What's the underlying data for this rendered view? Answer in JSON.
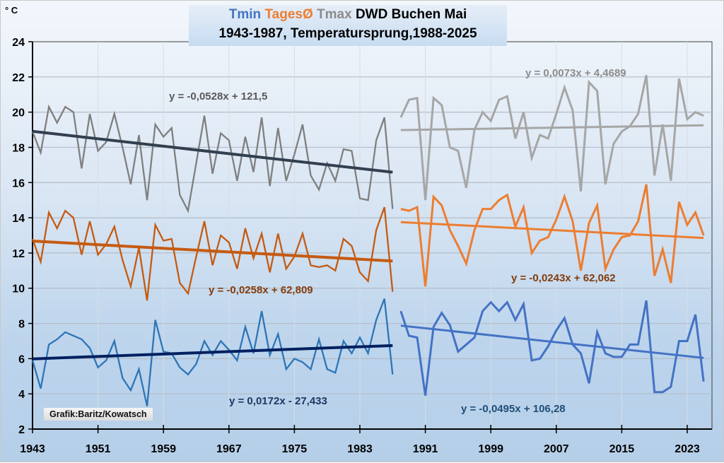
{
  "chart_data": {
    "type": "line",
    "title": "Tmin TagesØ Tmax DWD Buchen Mai",
    "title_parts": [
      {
        "text": "Tmin",
        "color": "#4472c4"
      },
      {
        "text": "TagesØ",
        "color": "#ed7d31"
      },
      {
        "text": "Tmax",
        "color": "#8c8c8c"
      },
      {
        "text": "DWD Buchen Mai",
        "color": "#000000"
      }
    ],
    "subtitle": "1943-1987, Temperatursprung,1988-2025",
    "ylabel": "° C",
    "xlabel": "",
    "ylim": [
      2,
      24
    ],
    "xlim": [
      1943,
      2026
    ],
    "yticks": [
      "2",
      "4",
      "6",
      "8",
      "10",
      "12",
      "14",
      "16",
      "18",
      "20",
      "22",
      "24"
    ],
    "xticks": [
      "1943",
      "1951",
      "1959",
      "1967",
      "1975",
      "1983",
      "1991",
      "1999",
      "2007",
      "2015",
      "2023"
    ],
    "grid": true,
    "legend": "none",
    "credit": "Grafik:Baritz/Kowatsch",
    "periods": [
      {
        "name": "1943-1987",
        "start": 1943,
        "series": [
          {
            "name": "Tmax",
            "color": "#7f7f7f",
            "values": [
              18.9,
              17.7,
              20.3,
              19.4,
              20.3,
              20.0,
              16.8,
              19.9,
              17.8,
              18.3,
              19.9,
              18.0,
              15.9,
              18.7,
              15.0,
              19.3,
              18.6,
              19.1,
              15.3,
              14.4,
              17.1,
              19.8,
              16.5,
              18.8,
              18.4,
              16.1,
              18.6,
              16.6,
              19.7,
              15.8,
              19.1,
              16.1,
              17.6,
              19.3,
              16.4,
              15.6,
              17.1,
              16.1,
              17.9,
              17.8,
              15.1,
              15.0,
              18.4,
              19.7,
              14.5
            ]
          },
          {
            "name": "TagesØ",
            "color": "#c55a11",
            "values": [
              12.8,
              11.5,
              14.3,
              13.4,
              14.4,
              14.0,
              11.9,
              13.8,
              11.9,
              12.5,
              13.5,
              11.6,
              10.1,
              12.3,
              9.3,
              13.6,
              12.7,
              12.8,
              10.3,
              9.7,
              11.8,
              13.8,
              11.3,
              13.0,
              12.6,
              11.1,
              13.4,
              11.7,
              13.1,
              10.9,
              13.1,
              11.1,
              11.8,
              13.1,
              11.3,
              11.2,
              11.3,
              11.0,
              12.8,
              12.4,
              10.9,
              10.4,
              13.3,
              14.6,
              9.8
            ]
          },
          {
            "name": "Tmin",
            "color": "#2e75b6",
            "values": [
              5.9,
              4.3,
              6.8,
              7.1,
              7.5,
              7.3,
              7.1,
              6.6,
              5.5,
              5.9,
              7.0,
              4.9,
              4.2,
              5.4,
              3.3,
              8.2,
              6.4,
              6.3,
              5.5,
              5.1,
              5.7,
              7.0,
              6.2,
              7.0,
              6.5,
              5.9,
              7.8,
              6.3,
              8.7,
              6.2,
              7.4,
              5.4,
              6.0,
              5.8,
              5.4,
              7.1,
              5.4,
              5.2,
              7.0,
              6.3,
              7.2,
              6.3,
              8.2,
              9.4,
              5.1
            ]
          }
        ],
        "trendlines": [
          {
            "series": "Tmax",
            "equation": "y = -0,0528x + 121,5",
            "slope": -0.0528,
            "intercept": 121.5,
            "color": "#323f4f"
          },
          {
            "series": "TagesØ",
            "equation": "y = -0,0258x + 62,809",
            "slope": -0.0258,
            "intercept": 62.809,
            "color": "#c55a11"
          },
          {
            "series": "Tmin",
            "equation": "y = 0,0172x - 27,433",
            "slope": 0.0172,
            "intercept": -27.433,
            "color": "#002060"
          }
        ]
      },
      {
        "name": "1988-2025",
        "start": 1988,
        "series": [
          {
            "name": "Tmax",
            "color": "#a6a6a6",
            "values": [
              19.7,
              20.7,
              20.8,
              15.0,
              20.8,
              20.4,
              18.0,
              17.8,
              15.7,
              19.0,
              20.0,
              19.5,
              20.7,
              20.9,
              18.5,
              20.0,
              17.4,
              18.7,
              18.5,
              19.9,
              21.4,
              20.1,
              15.5,
              21.7,
              21.2,
              15.9,
              18.2,
              18.9,
              19.2,
              19.9,
              22.1,
              16.4,
              19.3,
              16.1,
              21.9,
              19.6,
              20.0,
              19.8
            ]
          },
          {
            "name": "TagesØ",
            "color": "#ed7d31",
            "values": [
              14.5,
              14.4,
              14.6,
              10.1,
              15.2,
              14.7,
              13.3,
              12.4,
              11.4,
              13.3,
              14.5,
              14.5,
              15.0,
              15.3,
              13.5,
              14.6,
              12.0,
              12.7,
              12.9,
              13.9,
              15.2,
              13.8,
              11.0,
              13.7,
              14.7,
              11.1,
              12.2,
              12.9,
              13.0,
              13.8,
              15.9,
              10.7,
              12.2,
              10.3,
              14.9,
              13.6,
              14.3,
              13.0
            ]
          },
          {
            "name": "Tmin",
            "color": "#4472c4",
            "values": [
              8.7,
              7.3,
              7.2,
              3.9,
              7.8,
              8.6,
              7.9,
              6.4,
              6.8,
              7.2,
              8.7,
              9.2,
              8.7,
              9.2,
              8.2,
              9.1,
              5.9,
              6.0,
              6.7,
              7.6,
              8.3,
              6.8,
              6.3,
              4.6,
              7.5,
              6.3,
              6.1,
              6.1,
              6.8,
              6.8,
              9.3,
              4.1,
              4.1,
              4.4,
              7.0,
              7.0,
              8.5,
              4.7
            ]
          }
        ],
        "trendlines": [
          {
            "series": "Tmax",
            "equation": "y = 0,0073x + 4,4689",
            "slope": 0.0073,
            "intercept": 4.4689,
            "color": "#a6a6a6"
          },
          {
            "series": "TagesØ",
            "equation": "y = -0,0243x + 62,062",
            "slope": -0.0243,
            "intercept": 62.062,
            "color": "#ed7d31"
          },
          {
            "series": "Tmin",
            "equation": "y = -0,0495x + 106,28",
            "slope": -0.0495,
            "intercept": 106.28,
            "color": "#4472c4"
          }
        ]
      }
    ],
    "equation_label_colors": {
      "Tmax_1": "#595959",
      "TagesØ_1": "#843c0c",
      "Tmin_1": "#1f3864",
      "Tmax_2": "#8c8c8c",
      "TagesØ_2": "#843c0c",
      "Tmin_2": "#1f4e79"
    }
  }
}
